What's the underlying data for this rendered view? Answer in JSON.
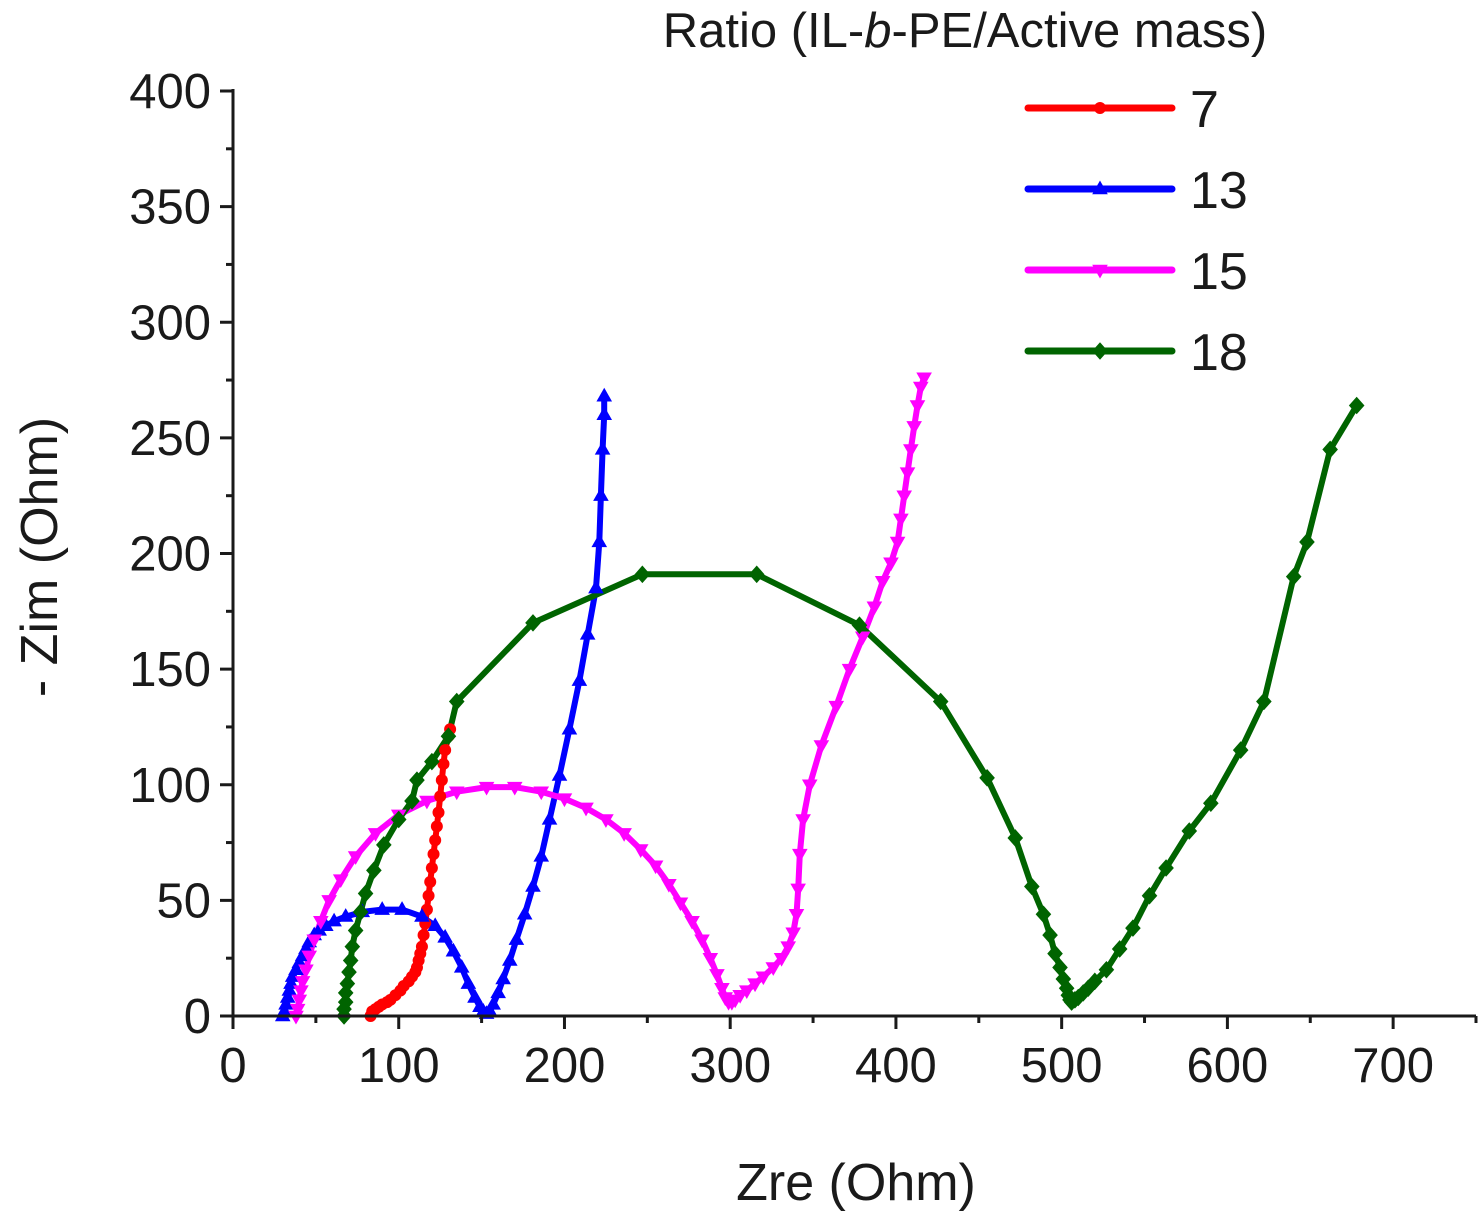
{
  "chart_data": {
    "type": "line",
    "title": "",
    "xlabel": "Zre (Ohm)",
    "ylabel": "- Zim (Ohm)",
    "xlim": [
      0,
      750
    ],
    "ylim": [
      0,
      400
    ],
    "x_ticks": [
      0,
      100,
      200,
      300,
      400,
      500,
      600,
      700
    ],
    "y_ticks": [
      0,
      50,
      100,
      150,
      200,
      250,
      300,
      350,
      400
    ],
    "grid": false,
    "legend_placement": "top-right",
    "legend_title": {
      "prefix": "Ratio (IL-",
      "italic": "b",
      "suffix": "-PE/Active mass)"
    },
    "series": [
      {
        "name": "7",
        "color": "#ff0000",
        "marker": "circle",
        "points": [
          [
            83,
            0
          ],
          [
            84,
            2
          ],
          [
            86,
            3
          ],
          [
            88,
            4
          ],
          [
            90,
            5
          ],
          [
            93,
            6
          ],
          [
            95,
            7
          ],
          [
            98,
            9
          ],
          [
            101,
            11
          ],
          [
            103,
            13
          ],
          [
            106,
            15
          ],
          [
            108,
            17
          ],
          [
            110,
            19
          ],
          [
            111,
            21
          ],
          [
            112,
            24
          ],
          [
            113,
            27
          ],
          [
            114,
            30
          ],
          [
            115,
            35
          ],
          [
            116,
            40
          ],
          [
            117,
            46
          ],
          [
            118,
            52
          ],
          [
            119,
            58
          ],
          [
            120,
            64
          ],
          [
            121,
            70
          ],
          [
            122,
            76
          ],
          [
            123,
            82
          ],
          [
            124,
            88
          ],
          [
            125,
            95
          ],
          [
            126,
            102
          ],
          [
            127,
            109
          ],
          [
            128,
            115
          ],
          [
            130,
            121
          ],
          [
            131,
            124
          ]
        ]
      },
      {
        "name": "13",
        "color": "#0000ff",
        "marker": "triangle-up",
        "points": [
          [
            30,
            0
          ],
          [
            31,
            2
          ],
          [
            32,
            5
          ],
          [
            33,
            8
          ],
          [
            34,
            11
          ],
          [
            35,
            14
          ],
          [
            36,
            17
          ],
          [
            38,
            20
          ],
          [
            40,
            23
          ],
          [
            42,
            26
          ],
          [
            44,
            29
          ],
          [
            46,
            32
          ],
          [
            49,
            35
          ],
          [
            52,
            37
          ],
          [
            56,
            39
          ],
          [
            61,
            41
          ],
          [
            68,
            43
          ],
          [
            78,
            45
          ],
          [
            90,
            46
          ],
          [
            102,
            46
          ],
          [
            114,
            43
          ],
          [
            122,
            39
          ],
          [
            128,
            34
          ],
          [
            133,
            28
          ],
          [
            138,
            21
          ],
          [
            142,
            14
          ],
          [
            146,
            8
          ],
          [
            149,
            4
          ],
          [
            151,
            2
          ],
          [
            153,
            1
          ],
          [
            155,
            2
          ],
          [
            157,
            5
          ],
          [
            160,
            10
          ],
          [
            163,
            16
          ],
          [
            167,
            24
          ],
          [
            171,
            33
          ],
          [
            176,
            44
          ],
          [
            181,
            56
          ],
          [
            186,
            69
          ],
          [
            191,
            85
          ],
          [
            197,
            104
          ],
          [
            203,
            124
          ],
          [
            209,
            145
          ],
          [
            214,
            165
          ],
          [
            219,
            185
          ],
          [
            221,
            205
          ],
          [
            222,
            225
          ],
          [
            223,
            245
          ],
          [
            224,
            260
          ],
          [
            224,
            268
          ]
        ]
      },
      {
        "name": "15",
        "color": "#ff00ff",
        "marker": "triangle-down",
        "points": [
          [
            38,
            0
          ],
          [
            39,
            3
          ],
          [
            40,
            7
          ],
          [
            41,
            11
          ],
          [
            42,
            15
          ],
          [
            44,
            20
          ],
          [
            46,
            26
          ],
          [
            49,
            33
          ],
          [
            53,
            41
          ],
          [
            58,
            50
          ],
          [
            65,
            59
          ],
          [
            74,
            69
          ],
          [
            86,
            79
          ],
          [
            100,
            87
          ],
          [
            117,
            93
          ],
          [
            135,
            97
          ],
          [
            153,
            99
          ],
          [
            170,
            99
          ],
          [
            186,
            97
          ],
          [
            200,
            94
          ],
          [
            213,
            90
          ],
          [
            225,
            85
          ],
          [
            236,
            79
          ],
          [
            246,
            72
          ],
          [
            255,
            65
          ],
          [
            263,
            57
          ],
          [
            270,
            49
          ],
          [
            277,
            41
          ],
          [
            283,
            33
          ],
          [
            288,
            25
          ],
          [
            292,
            18
          ],
          [
            295,
            12
          ],
          [
            297,
            8
          ],
          [
            299,
            6
          ],
          [
            301,
            6
          ],
          [
            303,
            7
          ],
          [
            306,
            9
          ],
          [
            310,
            11
          ],
          [
            315,
            14
          ],
          [
            320,
            17
          ],
          [
            326,
            21
          ],
          [
            331,
            25
          ],
          [
            335,
            30
          ],
          [
            338,
            36
          ],
          [
            340,
            44
          ],
          [
            341,
            55
          ],
          [
            342,
            70
          ],
          [
            344,
            85
          ],
          [
            348,
            100
          ],
          [
            355,
            117
          ],
          [
            364,
            134
          ],
          [
            372,
            150
          ],
          [
            380,
            164
          ],
          [
            387,
            177
          ],
          [
            392,
            188
          ],
          [
            397,
            196
          ],
          [
            401,
            205
          ],
          [
            403,
            215
          ],
          [
            405,
            225
          ],
          [
            407,
            235
          ],
          [
            409,
            245
          ],
          [
            411,
            255
          ],
          [
            413,
            264
          ],
          [
            415,
            272
          ],
          [
            417,
            276
          ]
        ]
      },
      {
        "name": "18",
        "color": "#006400",
        "marker": "diamond",
        "points": [
          [
            67,
            0
          ],
          [
            67,
            3
          ],
          [
            68,
            6
          ],
          [
            68,
            10
          ],
          [
            69,
            14
          ],
          [
            70,
            19
          ],
          [
            71,
            24
          ],
          [
            72,
            30
          ],
          [
            74,
            37
          ],
          [
            77,
            45
          ],
          [
            80,
            53
          ],
          [
            85,
            63
          ],
          [
            91,
            74
          ],
          [
            100,
            85
          ],
          [
            108,
            93
          ],
          [
            111,
            102
          ],
          [
            120,
            110
          ],
          [
            130,
            121
          ],
          [
            135,
            136
          ],
          [
            181,
            170
          ],
          [
            247,
            191
          ],
          [
            316,
            191
          ],
          [
            378,
            169
          ],
          [
            427,
            136
          ],
          [
            455,
            103
          ],
          [
            472,
            77
          ],
          [
            482,
            56
          ],
          [
            489,
            44
          ],
          [
            493,
            35
          ],
          [
            496,
            27
          ],
          [
            499,
            21
          ],
          [
            501,
            16
          ],
          [
            503,
            12
          ],
          [
            504,
            9
          ],
          [
            505,
            7
          ],
          [
            506,
            6
          ],
          [
            508,
            7
          ],
          [
            510,
            8
          ],
          [
            513,
            10
          ],
          [
            516,
            12
          ],
          [
            520,
            15
          ],
          [
            527,
            20
          ],
          [
            535,
            29
          ],
          [
            543,
            38
          ],
          [
            553,
            52
          ],
          [
            563,
            64
          ],
          [
            577,
            80
          ],
          [
            590,
            92
          ],
          [
            608,
            115
          ],
          [
            622,
            136
          ],
          [
            640,
            190
          ],
          [
            648,
            205
          ],
          [
            662,
            245
          ],
          [
            678,
            264
          ]
        ]
      }
    ]
  }
}
